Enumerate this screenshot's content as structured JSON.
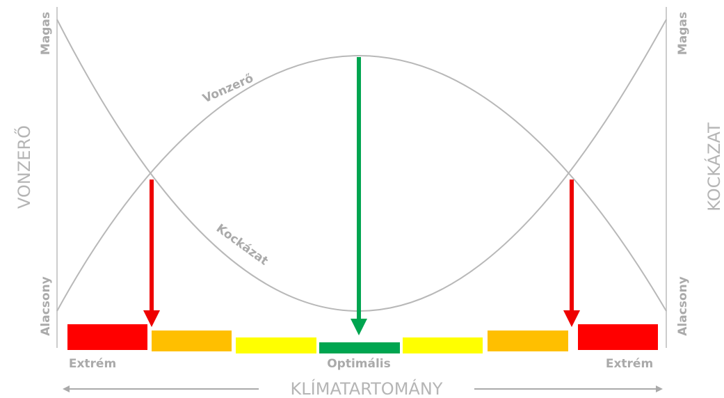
{
  "left_axis": {
    "title": "VONZERŐ",
    "high": "Magas",
    "low": "Alacsony"
  },
  "right_axis": {
    "title": "KOCKÁZAT",
    "high": "Magas",
    "low": "Alacsony"
  },
  "curves": {
    "attraction": "Vonzerő",
    "risk": "Kockázat"
  },
  "bottom": {
    "left": "Extrém",
    "center": "Optimális",
    "right": "Extrém",
    "title": "KLÍMATARTOMÁNY"
  }
}
